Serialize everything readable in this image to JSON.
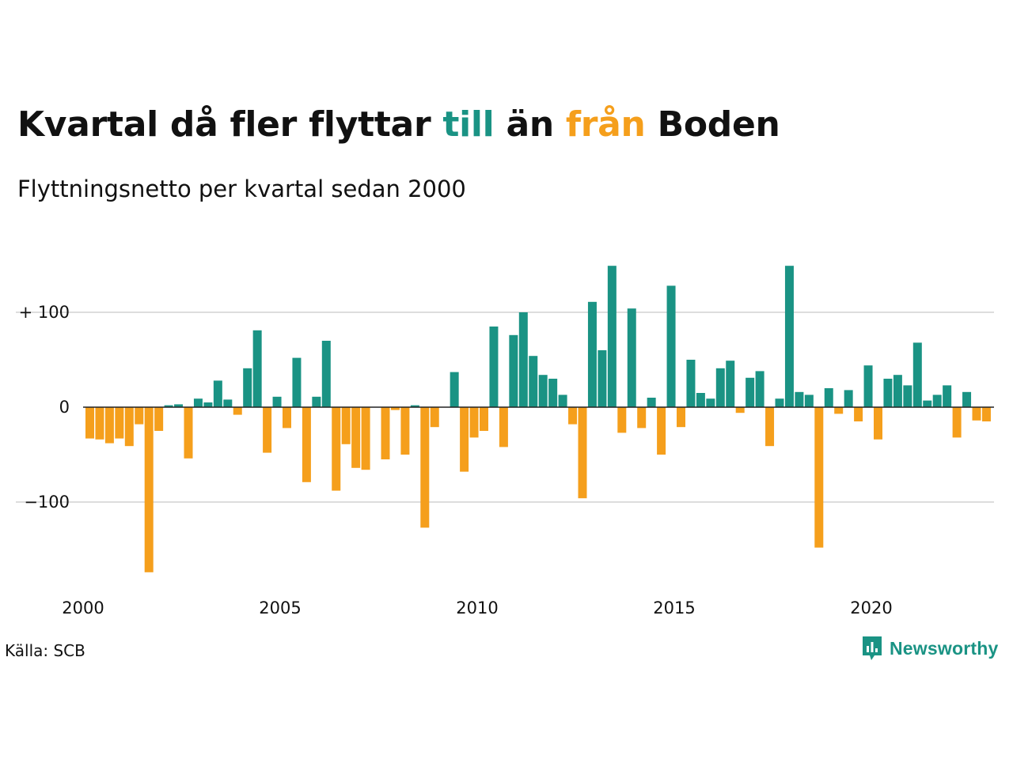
{
  "title": {
    "part1": "Kvartal då fler flyttar ",
    "till": "till",
    "part2": " än ",
    "fran": "från",
    "part3": " Boden"
  },
  "subtitle": "Flyttningsnetto per kvartal sedan 2000",
  "source": "Källa: SCB",
  "brand": {
    "name": "Newsworthy",
    "icon": "newsworthy-logo-icon"
  },
  "colors": {
    "positive": "#1a9384",
    "negative": "#f59f1c",
    "grid": "#dddddd",
    "zero_line": "#222222",
    "text": "#111111"
  },
  "chart_data": {
    "type": "bar",
    "ylim": [
      -185,
      150
    ],
    "yticks": [
      {
        "value": 100,
        "label": "+ 100"
      },
      {
        "value": 0,
        "label": "0"
      },
      {
        "value": -100,
        "label": "−100"
      }
    ],
    "xticks": [
      "2000",
      "2005",
      "2010",
      "2015",
      "2020"
    ],
    "grid": true,
    "start_year": 2000,
    "values": [
      -33,
      -34,
      -38,
      -33,
      -41,
      -18,
      -174,
      -25,
      2,
      3,
      -54,
      9,
      5,
      28,
      8,
      -8,
      41,
      81,
      -48,
      11,
      -22,
      52,
      -79,
      11,
      70,
      -88,
      -39,
      -64,
      -66,
      0,
      -55,
      -3,
      -50,
      2,
      -127,
      -21,
      0,
      37,
      -68,
      -32,
      -25,
      85,
      -42,
      76,
      100,
      54,
      34,
      30,
      13,
      -18,
      -96,
      111,
      60,
      149,
      -27,
      104,
      -22,
      10,
      -50,
      128,
      -21,
      50,
      15,
      9,
      41,
      49,
      -6,
      31,
      38,
      -41,
      9,
      149,
      16,
      13,
      -148,
      20,
      -7,
      18,
      -15,
      44,
      -34,
      30,
      34,
      23,
      68,
      7,
      13,
      23,
      -32,
      16,
      -14,
      -15
    ]
  }
}
